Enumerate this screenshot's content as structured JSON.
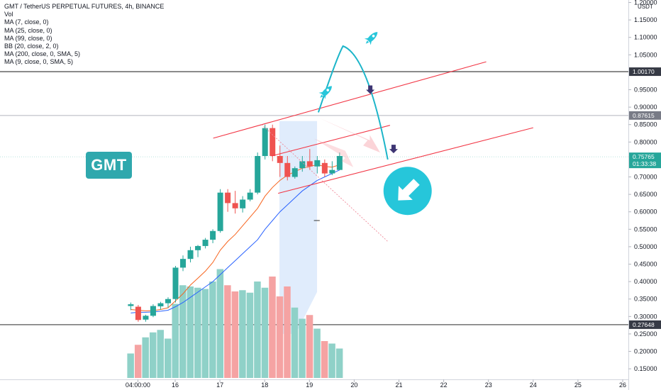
{
  "legend": {
    "title": "GMT / TetherUS PERPETUAL FUTURES, 4h, BINANCE",
    "lines": [
      "Vol",
      "MA (7, close, 0)",
      "MA (25, close, 0)",
      "MA (99, close, 0)",
      "BB (20, close, 2, 0)",
      "MA (200, close, 0, SMA, 5)",
      "MA (9, close, 0, SMA, 5)"
    ]
  },
  "badge": {
    "text": "GMT",
    "color": "#2fa8ad"
  },
  "colors": {
    "up": "#26a69a",
    "down": "#ef5350",
    "volume_up": "#8fd1c8",
    "volume_down": "#f5a3a3",
    "ma7": "#f7641e",
    "ma25": "#2962ff",
    "trend": "#f23645",
    "arrow_circle": "#26c6da",
    "curve": "#1cb5c9"
  },
  "chart_data": {
    "type": "candlestick",
    "unit": "USDT",
    "ylim": [
      0.135,
      1.2
    ],
    "y_ticks": [
      1.2,
      1.15,
      1.1,
      1.05,
      0.95,
      0.9,
      0.85,
      0.8,
      0.7,
      0.65,
      0.6,
      0.55,
      0.5,
      0.45,
      0.4,
      0.35,
      0.3,
      0.25,
      0.2,
      0.15
    ],
    "y_tick_labels": [
      "1.20000",
      "1.15000",
      "1.10000",
      "1.05000",
      "0.95000",
      "0.90000",
      "0.85000",
      "0.80000",
      "0.70000",
      "0.65000",
      "0.60000",
      "0.55000",
      "0.50000",
      "0.45000",
      "0.40000",
      "0.35000",
      "0.30000",
      "0.25000",
      "0.20000",
      "0.15000"
    ],
    "x_ticks": [
      {
        "label": "04:00:00",
        "day": 15.167
      },
      {
        "label": "16",
        "day": 16
      },
      {
        "label": "17",
        "day": 17
      },
      {
        "label": "18",
        "day": 18
      },
      {
        "label": "19",
        "day": 19
      },
      {
        "label": "20",
        "day": 20
      },
      {
        "label": "21",
        "day": 21
      },
      {
        "label": "22",
        "day": 22
      },
      {
        "label": "23",
        "day": 23
      },
      {
        "label": "24",
        "day": 24
      },
      {
        "label": "25",
        "day": 25
      },
      {
        "label": "26",
        "day": 26
      }
    ],
    "xlim_days": [
      14.6,
      26.2
    ],
    "candle_interval_hours": 4,
    "first_candle_day": 15.0,
    "candles": [
      {
        "o": 0.33,
        "h": 0.34,
        "l": 0.318,
        "c": 0.335
      },
      {
        "o": 0.328,
        "h": 0.333,
        "l": 0.285,
        "c": 0.29
      },
      {
        "o": 0.291,
        "h": 0.305,
        "l": 0.285,
        "c": 0.302
      },
      {
        "o": 0.302,
        "h": 0.335,
        "l": 0.298,
        "c": 0.33
      },
      {
        "o": 0.329,
        "h": 0.342,
        "l": 0.32,
        "c": 0.338
      },
      {
        "o": 0.338,
        "h": 0.355,
        "l": 0.325,
        "c": 0.35
      },
      {
        "o": 0.35,
        "h": 0.445,
        "l": 0.34,
        "c": 0.44
      },
      {
        "o": 0.44,
        "h": 0.475,
        "l": 0.43,
        "c": 0.465
      },
      {
        "o": 0.465,
        "h": 0.5,
        "l": 0.455,
        "c": 0.49
      },
      {
        "o": 0.49,
        "h": 0.505,
        "l": 0.47,
        "c": 0.502
      },
      {
        "o": 0.502,
        "h": 0.525,
        "l": 0.495,
        "c": 0.52
      },
      {
        "o": 0.52,
        "h": 0.55,
        "l": 0.51,
        "c": 0.545
      },
      {
        "o": 0.545,
        "h": 0.665,
        "l": 0.54,
        "c": 0.655
      },
      {
        "o": 0.655,
        "h": 0.665,
        "l": 0.6,
        "c": 0.625
      },
      {
        "o": 0.625,
        "h": 0.66,
        "l": 0.595,
        "c": 0.61
      },
      {
        "o": 0.61,
        "h": 0.645,
        "l": 0.598,
        "c": 0.635
      },
      {
        "o": 0.635,
        "h": 0.665,
        "l": 0.63,
        "c": 0.655
      },
      {
        "o": 0.655,
        "h": 0.77,
        "l": 0.65,
        "c": 0.76
      },
      {
        "o": 0.76,
        "h": 0.85,
        "l": 0.75,
        "c": 0.84
      },
      {
        "o": 0.84,
        "h": 0.85,
        "l": 0.745,
        "c": 0.76
      },
      {
        "o": 0.76,
        "h": 0.79,
        "l": 0.7,
        "c": 0.74
      },
      {
        "o": 0.74,
        "h": 0.76,
        "l": 0.69,
        "c": 0.7
      },
      {
        "o": 0.7,
        "h": 0.73,
        "l": 0.695,
        "c": 0.725
      },
      {
        "o": 0.725,
        "h": 0.76,
        "l": 0.715,
        "c": 0.745
      },
      {
        "o": 0.745,
        "h": 0.78,
        "l": 0.72,
        "c": 0.73
      },
      {
        "o": 0.73,
        "h": 0.76,
        "l": 0.71,
        "c": 0.748
      },
      {
        "o": 0.74,
        "h": 0.75,
        "l": 0.7,
        "c": 0.71
      },
      {
        "o": 0.71,
        "h": 0.745,
        "l": 0.705,
        "c": 0.72
      },
      {
        "o": 0.72,
        "h": 0.77,
        "l": 0.72,
        "c": 0.76
      }
    ],
    "volume": [
      0.18,
      0.25,
      0.31,
      0.35,
      0.37,
      0.3,
      0.58,
      0.73,
      0.72,
      0.71,
      0.7,
      0.76,
      0.86,
      0.73,
      0.68,
      0.69,
      0.67,
      0.76,
      0.71,
      0.8,
      0.64,
      0.72,
      0.55,
      0.46,
      0.49,
      0.38,
      0.28,
      0.26,
      0.22
    ],
    "ma7": [
      0.32,
      0.318,
      0.316,
      0.317,
      0.32,
      0.325,
      0.345,
      0.365,
      0.39,
      0.41,
      0.43,
      0.455,
      0.49,
      0.515,
      0.535,
      0.56,
      0.585,
      0.61,
      0.645,
      0.67,
      0.69,
      0.705,
      0.715,
      0.725,
      0.73,
      0.735,
      0.73,
      0.728,
      0.735
    ],
    "ma25": [
      0.31,
      0.312,
      0.312,
      0.313,
      0.315,
      0.318,
      0.328,
      0.34,
      0.355,
      0.37,
      0.385,
      0.4,
      0.42,
      0.44,
      0.46,
      0.48,
      0.5,
      0.52,
      0.55,
      0.575,
      0.6,
      0.62,
      0.64,
      0.66,
      0.675,
      0.69,
      0.7,
      0.71,
      0.72
    ],
    "price_levels": [
      {
        "label": "1.00170",
        "value": 1.0017,
        "line_color": "#555555",
        "tag_color": "#363a45"
      },
      {
        "label": "0.87615",
        "value": 0.87615,
        "line_color": "#b2b5be",
        "tag_color": "#787b86"
      },
      {
        "label": "0.27648",
        "value": 0.27648,
        "line_color": "#555555",
        "tag_color": "#363a45"
      }
    ],
    "current_price": {
      "label": "0.75765",
      "countdown": "01:33:38",
      "value": 0.75765,
      "tag_color": "#26a69a"
    },
    "trend_lines": [
      {
        "from": [
          16.85,
          0.811
        ],
        "to": [
          22.95,
          1.03
        ]
      },
      {
        "from": [
          18.15,
          0.76
        ],
        "to": [
          20.8,
          0.848
        ]
      },
      {
        "from": [
          18.3,
          0.653
        ],
        "to": [
          24.0,
          0.841
        ]
      },
      {
        "from": [
          19.0,
          0.742
        ],
        "to": [
          19.0,
          0.742
        ]
      }
    ],
    "axis_unit": "USDT"
  }
}
